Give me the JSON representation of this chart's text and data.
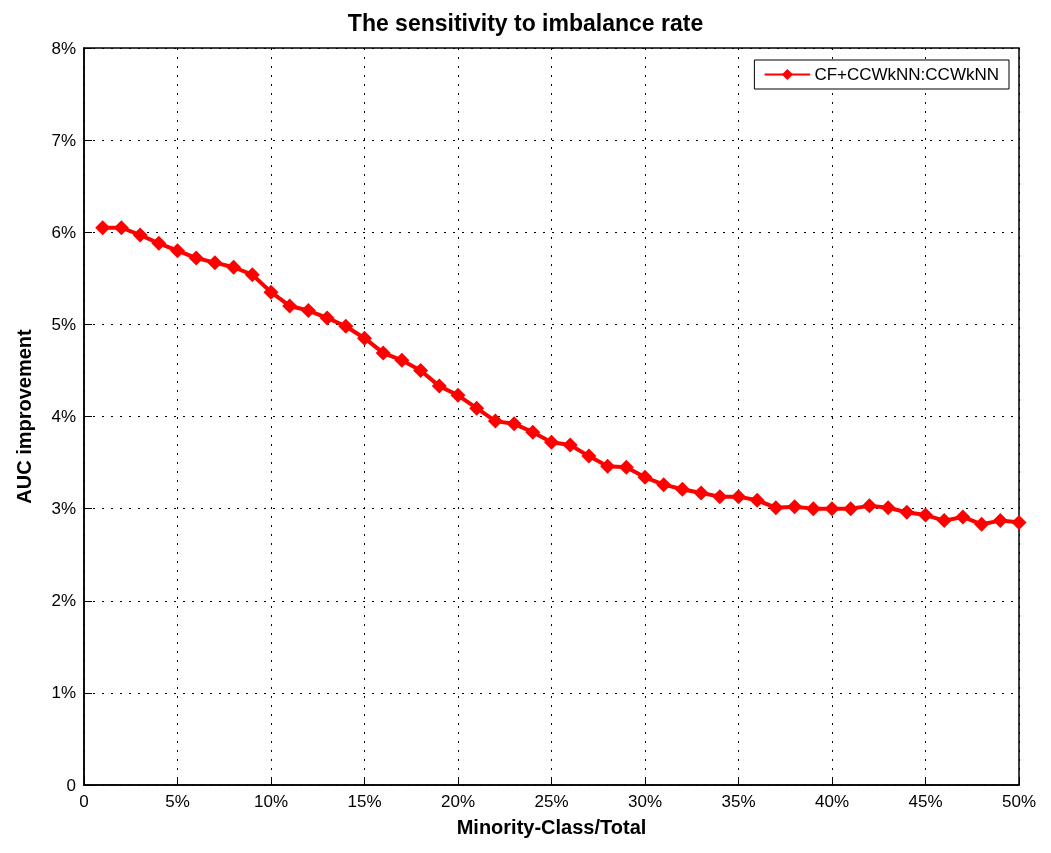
{
  "chart_data": {
    "type": "line",
    "title": "The sensitivity to imbalance rate",
    "xlabel": "Minority-Class/Total",
    "ylabel": "AUC improvement",
    "x": [
      1,
      2,
      3,
      4,
      5,
      6,
      7,
      8,
      9,
      10,
      11,
      12,
      13,
      14,
      15,
      16,
      17,
      18,
      19,
      20,
      21,
      22,
      23,
      24,
      25,
      26,
      27,
      28,
      29,
      30,
      31,
      32,
      33,
      34,
      35,
      36,
      37,
      38,
      39,
      40,
      41,
      42,
      43,
      44,
      45,
      46,
      47,
      48,
      49,
      50
    ],
    "series": [
      {
        "name": "CF+CCWkNN:CCWkNN",
        "color": "#ff0000",
        "values": [
          6.05,
          6.05,
          5.97,
          5.88,
          5.8,
          5.72,
          5.67,
          5.62,
          5.54,
          5.35,
          5.2,
          5.15,
          5.07,
          4.98,
          4.85,
          4.69,
          4.61,
          4.5,
          4.33,
          4.23,
          4.09,
          3.95,
          3.92,
          3.83,
          3.72,
          3.69,
          3.57,
          3.46,
          3.45,
          3.34,
          3.26,
          3.21,
          3.17,
          3.13,
          3.13,
          3.09,
          3.01,
          3.02,
          3.0,
          3.0,
          3.0,
          3.03,
          3.01,
          2.96,
          2.93,
          2.87,
          2.91,
          2.83,
          2.87,
          2.85
        ]
      }
    ],
    "xlim": [
      0,
      50
    ],
    "ylim": [
      0,
      8
    ],
    "xticks": [
      0,
      {
        "value": 5,
        "label": "5%"
      },
      {
        "value": 10,
        "label": "10%"
      },
      {
        "value": 15,
        "label": "15%"
      },
      {
        "value": 20,
        "label": "20%"
      },
      {
        "value": 25,
        "label": "25%"
      },
      {
        "value": 30,
        "label": "30%"
      },
      {
        "value": 35,
        "label": "35%"
      },
      {
        "value": 40,
        "label": "40%"
      },
      {
        "value": 45,
        "label": "45%"
      },
      {
        "value": 50,
        "label": "50%"
      }
    ],
    "yticks": [
      0,
      {
        "value": 1,
        "label": "1%"
      },
      {
        "value": 2,
        "label": "2%"
      },
      {
        "value": 3,
        "label": "3%"
      },
      {
        "value": 4,
        "label": "4%"
      },
      {
        "value": 5,
        "label": "5%"
      },
      {
        "value": 6,
        "label": "6%"
      },
      {
        "value": 7,
        "label": "7%"
      },
      {
        "value": 8,
        "label": "8%"
      }
    ],
    "grid": true,
    "legend": "top right",
    "marker": "diamond",
    "line_style": "solid"
  }
}
